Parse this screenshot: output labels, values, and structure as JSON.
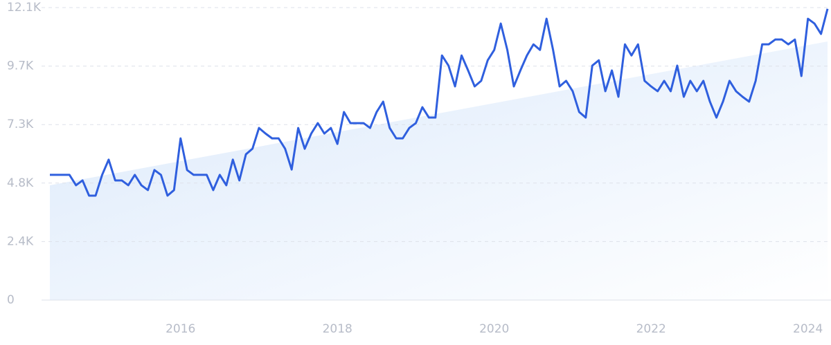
{
  "chart_data": {
    "type": "line",
    "categories": [
      null,
      null,
      null,
      null,
      null,
      null,
      null,
      null,
      null,
      null,
      null,
      null,
      null,
      null,
      null,
      null,
      null,
      null,
      null,
      null,
      "2016",
      null,
      null,
      null,
      null,
      null,
      null,
      null,
      null,
      null,
      null,
      null,
      null,
      null,
      null,
      null,
      null,
      null,
      null,
      null,
      null,
      null,
      null,
      null,
      "2018",
      null,
      null,
      null,
      null,
      null,
      null,
      null,
      null,
      null,
      null,
      null,
      null,
      null,
      null,
      null,
      null,
      null,
      null,
      null,
      null,
      null,
      null,
      null,
      "2020",
      null,
      null,
      null,
      null,
      null,
      null,
      null,
      null,
      null,
      null,
      null,
      null,
      null,
      null,
      null,
      null,
      null,
      null,
      null,
      null,
      null,
      null,
      null,
      "2022",
      null,
      null,
      null,
      null,
      null,
      null,
      null,
      null,
      null,
      null,
      null,
      null,
      null,
      null,
      null,
      null,
      null,
      null,
      null,
      null,
      null,
      null,
      null,
      "2024",
      null,
      null,
      null
    ],
    "values": [
      5180,
      5180,
      5180,
      5180,
      4750,
      4950,
      4320,
      4320,
      5180,
      5810,
      4950,
      4950,
      4750,
      5180,
      4750,
      4550,
      5380,
      5180,
      4320,
      4550,
      6690,
      5380,
      5180,
      5180,
      5180,
      4550,
      5180,
      4750,
      5810,
      4950,
      6030,
      6260,
      7120,
      6890,
      6690,
      6690,
      6260,
      5400,
      7120,
      6260,
      6890,
      7320,
      6890,
      7120,
      6460,
      7780,
      7320,
      7320,
      7320,
      7120,
      7780,
      8210,
      7120,
      6690,
      6690,
      7120,
      7320,
      7980,
      7550,
      7550,
      10120,
      9700,
      8840,
      10120,
      9500,
      8840,
      9070,
      9920,
      10350,
      11440,
      10350,
      8840,
      9500,
      10120,
      10580,
      10350,
      11640,
      10350,
      8840,
      9070,
      8640,
      7780,
      7550,
      9700,
      9920,
      8640,
      9500,
      8410,
      10580,
      10120,
      10580,
      9070,
      8840,
      8640,
      9070,
      8640,
      9700,
      8410,
      9070,
      8640,
      9070,
      8210,
      7550,
      8210,
      9070,
      8640,
      8410,
      8210,
      9070,
      10580,
      10580,
      10780,
      10780,
      10580,
      10780,
      9270,
      11640,
      11440,
      11010,
      12050
    ],
    "color": "#2f5fde",
    "ylim": [
      0,
      12100
    ],
    "yticks": [
      0,
      {
        "value": 2420,
        "label": "2.4K"
      },
      {
        "value": 4840,
        "label": "4.8K"
      },
      {
        "value": 7260,
        "label": "7.3K"
      },
      {
        "value": 9680,
        "label": "9.7K"
      },
      {
        "value": 12100,
        "label": "12.1K"
      }
    ],
    "grid": true
  }
}
